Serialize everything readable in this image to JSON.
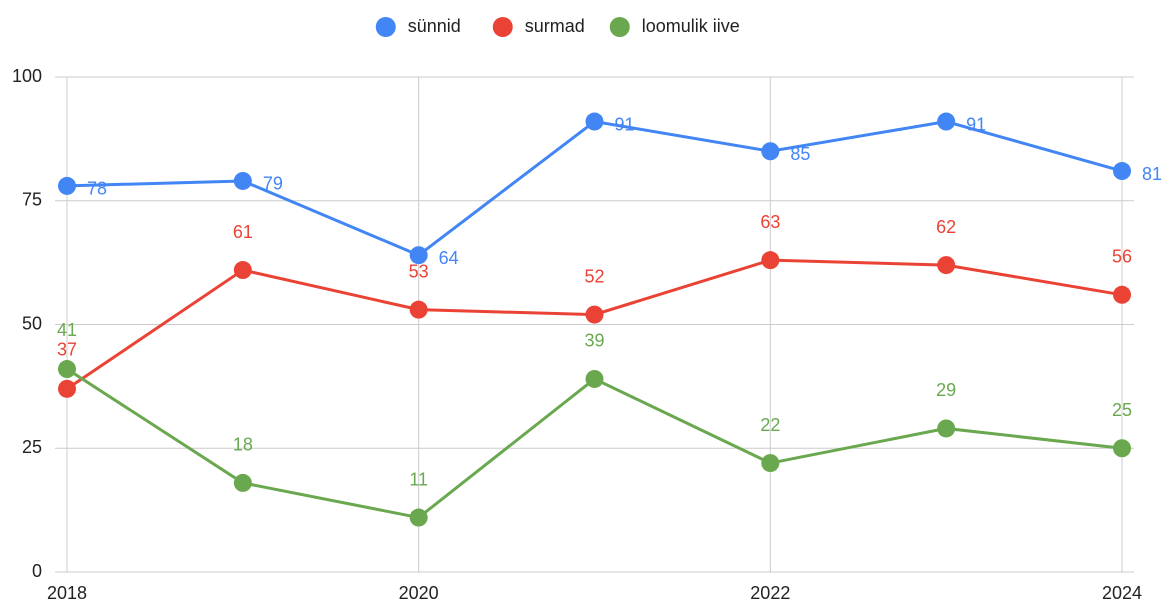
{
  "chart_data": {
    "type": "line",
    "x": [
      2018,
      2019,
      2020,
      2021,
      2022,
      2023,
      2024
    ],
    "series": [
      {
        "name": "sünnid",
        "color": "#4285f4",
        "values": [
          78,
          79,
          64,
          91,
          85,
          91,
          81
        ]
      },
      {
        "name": "surmad",
        "color": "#ea4335",
        "values": [
          37,
          61,
          53,
          52,
          63,
          62,
          56
        ]
      },
      {
        "name": "loomulik iive",
        "color": "#6aa84f",
        "values": [
          41,
          18,
          11,
          39,
          22,
          29,
          25
        ]
      }
    ],
    "xlim": [
      2018,
      2024
    ],
    "xticks": [
      2018,
      2020,
      2022,
      2024
    ],
    "ylim": [
      0,
      100
    ],
    "yticks": [
      0,
      25,
      50,
      75,
      100
    ],
    "grid": true,
    "legend": "top"
  }
}
